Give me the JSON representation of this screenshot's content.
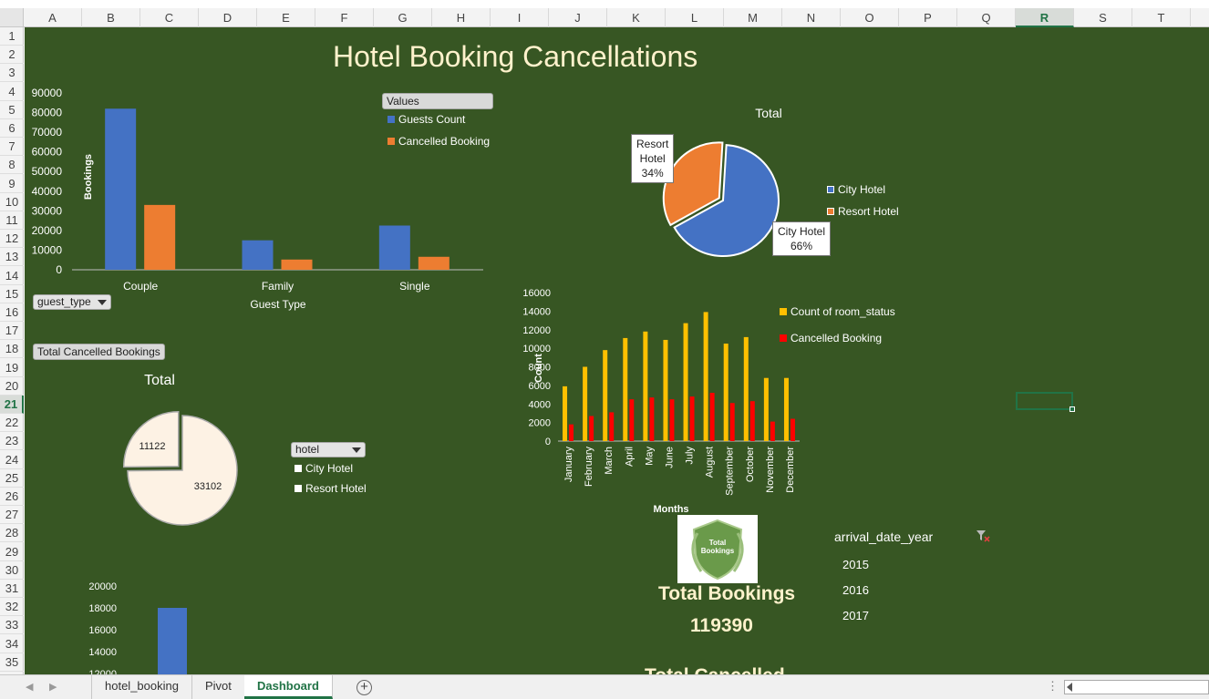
{
  "columns": [
    "A",
    "B",
    "C",
    "D",
    "E",
    "F",
    "G",
    "H",
    "I",
    "J",
    "K",
    "L",
    "M",
    "N",
    "O",
    "P",
    "Q",
    "R",
    "S",
    "T"
  ],
  "active_column": "R",
  "rows": [
    "1",
    "2",
    "3",
    "4",
    "5",
    "6",
    "7",
    "8",
    "9",
    "10",
    "11",
    "12",
    "13",
    "14",
    "15",
    "16",
    "17",
    "18",
    "19",
    "20",
    "21",
    "22",
    "23",
    "24",
    "25",
    "26",
    "27",
    "28",
    "29",
    "30",
    "31",
    "32",
    "33",
    "34",
    "35"
  ],
  "active_row": "21",
  "dashboard": {
    "title": "Hotel Booking Cancellations",
    "guest_type_filter": "guest_type",
    "total_cancelled_button": "Total Cancelled Bookings",
    "hotel_filter": "hotel",
    "hotel_filter_items": [
      "City Hotel",
      "Resort Hotel"
    ],
    "values_button": "Values",
    "kpi": {
      "logo_text": "Total Bookings",
      "label": "Total Bookings",
      "value": "119390",
      "next_label_partial": "Total Cancelled..."
    },
    "year_slicer": {
      "title": "arrival_date_year",
      "years": [
        "2015",
        "2016",
        "2017"
      ]
    }
  },
  "sheet_tabs": [
    "hotel_booking",
    "Pivot",
    "Dashboard"
  ],
  "active_tab": "Dashboard",
  "colors": {
    "dashboard_bg": "#375623",
    "blue": "#4472c4",
    "orange": "#ed7d31",
    "yellow": "#ffc000",
    "red": "#ff0000",
    "cream": "#fdf2e4",
    "excel_green": "#217346"
  },
  "chart_data": [
    {
      "type": "bar",
      "title": "",
      "categories": [
        "Couple",
        "Family",
        "Single"
      ],
      "series": [
        {
          "name": "Guests Count",
          "values": [
            82000,
            15000,
            22500
          ],
          "color": "#4472c4"
        },
        {
          "name": "Cancelled Booking",
          "values": [
            33000,
            5200,
            6600
          ],
          "color": "#ed7d31"
        }
      ],
      "xlabel": "Guest Type",
      "ylabel": "Bookings",
      "ylim": [
        0,
        90000
      ],
      "yticks": [
        "0",
        "10000",
        "20000",
        "30000",
        "40000",
        "50000",
        "60000",
        "70000",
        "80000",
        "90000"
      ],
      "legend": "top-right",
      "grid": false
    },
    {
      "type": "pie",
      "title": "Total",
      "labels": [
        "City Hotel",
        "Resort Hotel"
      ],
      "values": [
        66,
        34
      ],
      "data_labels": [
        [
          "City Hotel",
          "66%"
        ],
        [
          "Resort",
          "Hotel",
          "34%"
        ]
      ],
      "colors": [
        "#4472c4",
        "#ed7d31"
      ],
      "legend": "right"
    },
    {
      "type": "bar",
      "title": "",
      "categories": [
        "January",
        "February",
        "March",
        "April",
        "May",
        "June",
        "July",
        "August",
        "September",
        "October",
        "November",
        "December"
      ],
      "series": [
        {
          "name": "Count of room_status",
          "values": [
            5900,
            8000,
            9800,
            11100,
            11800,
            10900,
            12700,
            13900,
            10500,
            11200,
            6800,
            6800
          ],
          "color": "#ffc000"
        },
        {
          "name": "Cancelled Booking",
          "values": [
            1800,
            2700,
            3100,
            4500,
            4700,
            4500,
            4800,
            5200,
            4100,
            4300,
            2100,
            2400
          ],
          "color": "#ff0000"
        }
      ],
      "xlabel": "Months",
      "ylabel": "Count",
      "ylim": [
        0,
        16000
      ],
      "yticks": [
        "0",
        "2000",
        "4000",
        "6000",
        "8000",
        "10000",
        "12000",
        "14000",
        "16000"
      ],
      "legend": "top-right",
      "grid": false
    },
    {
      "type": "pie",
      "title": "Total",
      "labels": [
        "",
        ""
      ],
      "values": [
        33102,
        11122
      ],
      "data_labels": [
        "33102",
        "11122"
      ],
      "colors": [
        "#fdf2e4",
        "#fdf2e4"
      ],
      "legend": "right"
    },
    {
      "type": "bar",
      "title": "",
      "categories": [
        ""
      ],
      "series": [
        {
          "name": "",
          "values": [
            18000
          ],
          "color": "#4472c4"
        }
      ],
      "yticks": [
        "20000",
        "18000",
        "16000",
        "14000",
        "12000"
      ],
      "ylim": [
        12000,
        20000
      ]
    }
  ]
}
